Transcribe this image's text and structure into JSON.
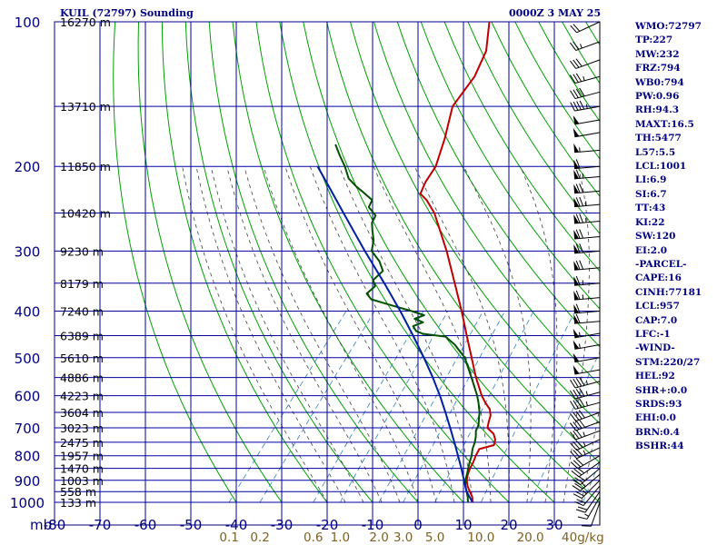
{
  "header": {
    "station": "KUIL (72797) Sounding",
    "datetime": "0000Z  3 MAY 25"
  },
  "indices": [
    "WMO:72797",
    "TP:227",
    "MW:232",
    "FRZ:794",
    "WB0:794",
    "PW:0.96",
    "RH:94.3",
    "MAXT:16.5",
    "TH:5477",
    "L57:5.5",
    "LCL:1001",
    "LI:6.9",
    "SI:6.7",
    "TT:43",
    "KI:22",
    "SW:120",
    "EI:2.0",
    "-PARCEL-",
    "CAPE:16",
    "CINH:77181",
    "LCL:957",
    "CAP:7.0",
    "LFC:-1",
    "-WIND-",
    "STM:220/27",
    "HEL:92",
    "SHR+:0.0",
    "SRDS:93",
    "EHI:0.0",
    "BRN:0.4",
    "BSHR:44"
  ],
  "colors": {
    "frame": "#000080",
    "isotherm_isobar": "#0000a0",
    "dry_adiabat": "#00a000",
    "moist_adiabat": "#404040",
    "mixing_ratio": "#3080c0",
    "temperature": "#c00000",
    "dewpoint": "#005000",
    "parcel": "#0020a0",
    "wind": "#000000"
  },
  "chart_data": {
    "type": "line",
    "title": "KUIL (72797) Sounding",
    "xlabel": "",
    "ylabel": "mb",
    "x_unit": "°C",
    "y_unit": "mb",
    "xlim": [
      -80,
      40
    ],
    "ylim": [
      1000,
      100
    ],
    "log_y": true,
    "skewed_temperature_axis": true,
    "grid": true,
    "pressure_ticks": [
      "100",
      "200",
      "300",
      "400",
      "500",
      "600",
      "700",
      "800",
      "900",
      "1000"
    ],
    "height_labels": [
      {
        "p": 100,
        "label": "16270 m"
      },
      {
        "p": 150,
        "label": "13710 m"
      },
      {
        "p": 200,
        "label": "11850 m"
      },
      {
        "p": 250,
        "label": "10420 m"
      },
      {
        "p": 300,
        "label": "9230 m"
      },
      {
        "p": 350,
        "label": "8179 m"
      },
      {
        "p": 400,
        "label": "7240 m"
      },
      {
        "p": 450,
        "label": "6389 m"
      },
      {
        "p": 500,
        "label": "5610 m"
      },
      {
        "p": 550,
        "label": "4886 m"
      },
      {
        "p": 600,
        "label": "4223 m"
      },
      {
        "p": 650,
        "label": "3604 m"
      },
      {
        "p": 700,
        "label": "3023 m"
      },
      {
        "p": 750,
        "label": "2475 m"
      },
      {
        "p": 800,
        "label": "1957 m"
      },
      {
        "p": 850,
        "label": "1470 m"
      },
      {
        "p": 900,
        "label": "1003 m"
      },
      {
        "p": 950,
        "label": "558 m"
      },
      {
        "p": 1000,
        "label": "133 m"
      }
    ],
    "temperature_ticks": [
      -80,
      -70,
      -60,
      -50,
      -40,
      -30,
      -20,
      -10,
      0,
      10,
      20,
      30
    ],
    "temperature_tick_labels": [
      "-80",
      "-70",
      "-60",
      "-50",
      "-40",
      "-30",
      "-20",
      "-10",
      "0",
      "10",
      "20",
      "30"
    ],
    "axis_unit_label": "mb",
    "mixing_ratio_labels": [
      "0.1",
      "0.2",
      "0.6",
      "1.0",
      "2.0",
      "3.0",
      "5.0",
      "10.0",
      "20.0",
      "40g/kg"
    ],
    "mixing_ratio_values": [
      0.1,
      0.2,
      0.6,
      1.0,
      2.0,
      3.0,
      5.0,
      10.0,
      20.0,
      40.0
    ],
    "series": [
      {
        "role": "temperature",
        "points": [
          {
            "p": 1000,
            "t": 12.0
          },
          {
            "p": 975,
            "t": 11.0
          },
          {
            "p": 950,
            "t": 9.5
          },
          {
            "p": 925,
            "t": 8.0
          },
          {
            "p": 900,
            "t": 6.8
          },
          {
            "p": 875,
            "t": 6.0
          },
          {
            "p": 850,
            "t": 5.4
          },
          {
            "p": 825,
            "t": 5.0
          },
          {
            "p": 800,
            "t": 4.4
          },
          {
            "p": 775,
            "t": 4.0
          },
          {
            "p": 760,
            "t": 6.5
          },
          {
            "p": 740,
            "t": 5.8
          },
          {
            "p": 720,
            "t": 4.4
          },
          {
            "p": 700,
            "t": 2.0
          },
          {
            "p": 680,
            "t": 1.2
          },
          {
            "p": 660,
            "t": 0.5
          },
          {
            "p": 640,
            "t": -0.8
          },
          {
            "p": 620,
            "t": -3.0
          },
          {
            "p": 600,
            "t": -5.0
          },
          {
            "p": 550,
            "t": -9.5
          },
          {
            "p": 500,
            "t": -14.0
          },
          {
            "p": 450,
            "t": -19.0
          },
          {
            "p": 400,
            "t": -24.5
          },
          {
            "p": 350,
            "t": -31.0
          },
          {
            "p": 300,
            "t": -38.5
          },
          {
            "p": 270,
            "t": -44.0
          },
          {
            "p": 250,
            "t": -48.0
          },
          {
            "p": 235,
            "t": -52.0
          },
          {
            "p": 228,
            "t": -54.5
          },
          {
            "p": 215,
            "t": -55.5
          },
          {
            "p": 200,
            "t": -56.0
          },
          {
            "p": 175,
            "t": -59.0
          },
          {
            "p": 150,
            "t": -63.0
          },
          {
            "p": 130,
            "t": -63.5
          },
          {
            "p": 115,
            "t": -65.5
          },
          {
            "p": 100,
            "t": -70.0
          }
        ]
      },
      {
        "role": "dewpoint",
        "points": [
          {
            "p": 1000,
            "t": 11.0
          },
          {
            "p": 975,
            "t": 10.0
          },
          {
            "p": 950,
            "t": 8.8
          },
          {
            "p": 925,
            "t": 7.5
          },
          {
            "p": 900,
            "t": 6.5
          },
          {
            "p": 875,
            "t": 5.8
          },
          {
            "p": 850,
            "t": 5.0
          },
          {
            "p": 825,
            "t": 4.2
          },
          {
            "p": 800,
            "t": 3.5
          },
          {
            "p": 775,
            "t": 2.5
          },
          {
            "p": 750,
            "t": 1.8
          },
          {
            "p": 730,
            "t": 1.0
          },
          {
            "p": 710,
            "t": 0.0
          },
          {
            "p": 690,
            "t": -0.5
          },
          {
            "p": 670,
            "t": -1.5
          },
          {
            "p": 650,
            "t": -2.5
          },
          {
            "p": 620,
            "t": -4.5
          },
          {
            "p": 600,
            "t": -6.0
          },
          {
            "p": 550,
            "t": -10.5
          },
          {
            "p": 500,
            "t": -15.5
          },
          {
            "p": 470,
            "t": -20.0
          },
          {
            "p": 452,
            "t": -23.5
          },
          {
            "p": 446,
            "t": -29.0
          },
          {
            "p": 440,
            "t": -31.0
          },
          {
            "p": 430,
            "t": -32.5
          },
          {
            "p": 422,
            "t": -31.0
          },
          {
            "p": 415,
            "t": -33.5
          },
          {
            "p": 408,
            "t": -32.0
          },
          {
            "p": 400,
            "t": -35.5
          },
          {
            "p": 390,
            "t": -40.5
          },
          {
            "p": 378,
            "t": -46.5
          },
          {
            "p": 368,
            "t": -48.5
          },
          {
            "p": 355,
            "t": -48.0
          },
          {
            "p": 345,
            "t": -49.5
          },
          {
            "p": 330,
            "t": -49.0
          },
          {
            "p": 315,
            "t": -51.5
          },
          {
            "p": 300,
            "t": -55.0
          },
          {
            "p": 285,
            "t": -56.5
          },
          {
            "p": 272,
            "t": -58.5
          },
          {
            "p": 262,
            "t": -60.0
          },
          {
            "p": 253,
            "t": -60.5
          },
          {
            "p": 243,
            "t": -63.5
          },
          {
            "p": 235,
            "t": -64.0
          },
          {
            "p": 226,
            "t": -67.5
          },
          {
            "p": 220,
            "t": -70.0
          },
          {
            "p": 212,
            "t": -73.0
          },
          {
            "p": 200,
            "t": -76.0
          },
          {
            "p": 190,
            "t": -79.0
          },
          {
            "p": 180,
            "t": -82.0
          }
        ]
      },
      {
        "role": "parcel",
        "points": [
          {
            "p": 1000,
            "t": 12.0
          },
          {
            "p": 950,
            "t": 8.8
          },
          {
            "p": 900,
            "t": 6.2
          },
          {
            "p": 850,
            "t": 3.5
          },
          {
            "p": 800,
            "t": 0.5
          },
          {
            "p": 750,
            "t": -2.7
          },
          {
            "p": 700,
            "t": -6.2
          },
          {
            "p": 650,
            "t": -10.0
          },
          {
            "p": 600,
            "t": -14.2
          },
          {
            "p": 550,
            "t": -19.0
          },
          {
            "p": 500,
            "t": -24.5
          },
          {
            "p": 450,
            "t": -30.8
          },
          {
            "p": 400,
            "t": -38.0
          },
          {
            "p": 350,
            "t": -46.5
          },
          {
            "p": 300,
            "t": -56.5
          },
          {
            "p": 250,
            "t": -68.0
          },
          {
            "p": 220,
            "t": -76.0
          },
          {
            "p": 200,
            "t": -82.0
          }
        ]
      }
    ],
    "wind_barbs": [
      {
        "p": 1000,
        "dir": 200,
        "spd": 10
      },
      {
        "p": 975,
        "dir": 210,
        "spd": 15
      },
      {
        "p": 950,
        "dir": 215,
        "spd": 20
      },
      {
        "p": 925,
        "dir": 220,
        "spd": 20
      },
      {
        "p": 900,
        "dir": 225,
        "spd": 25
      },
      {
        "p": 875,
        "dir": 230,
        "spd": 25
      },
      {
        "p": 850,
        "dir": 230,
        "spd": 30
      },
      {
        "p": 825,
        "dir": 235,
        "spd": 30
      },
      {
        "p": 800,
        "dir": 240,
        "spd": 30
      },
      {
        "p": 770,
        "dir": 245,
        "spd": 35
      },
      {
        "p": 740,
        "dir": 245,
        "spd": 35
      },
      {
        "p": 710,
        "dir": 250,
        "spd": 35
      },
      {
        "p": 680,
        "dir": 250,
        "spd": 40
      },
      {
        "p": 650,
        "dir": 250,
        "spd": 40
      },
      {
        "p": 620,
        "dir": 255,
        "spd": 45
      },
      {
        "p": 590,
        "dir": 255,
        "spd": 45
      },
      {
        "p": 560,
        "dir": 255,
        "spd": 45
      },
      {
        "p": 530,
        "dir": 260,
        "spd": 50
      },
      {
        "p": 500,
        "dir": 260,
        "spd": 50
      },
      {
        "p": 470,
        "dir": 260,
        "spd": 55
      },
      {
        "p": 445,
        "dir": 260,
        "spd": 55
      },
      {
        "p": 420,
        "dir": 265,
        "spd": 60
      },
      {
        "p": 400,
        "dir": 265,
        "spd": 60
      },
      {
        "p": 375,
        "dir": 265,
        "spd": 65
      },
      {
        "p": 350,
        "dir": 265,
        "spd": 65
      },
      {
        "p": 325,
        "dir": 265,
        "spd": 70
      },
      {
        "p": 300,
        "dir": 265,
        "spd": 70
      },
      {
        "p": 280,
        "dir": 265,
        "spd": 70
      },
      {
        "p": 260,
        "dir": 265,
        "spd": 75
      },
      {
        "p": 240,
        "dir": 265,
        "spd": 75
      },
      {
        "p": 225,
        "dir": 265,
        "spd": 70
      },
      {
        "p": 210,
        "dir": 265,
        "spd": 65
      },
      {
        "p": 200,
        "dir": 265,
        "spd": 60
      },
      {
        "p": 185,
        "dir": 265,
        "spd": 55
      },
      {
        "p": 170,
        "dir": 260,
        "spd": 50
      },
      {
        "p": 160,
        "dir": 260,
        "spd": 50
      },
      {
        "p": 150,
        "dir": 260,
        "spd": 45
      },
      {
        "p": 140,
        "dir": 255,
        "spd": 40
      },
      {
        "p": 130,
        "dir": 255,
        "spd": 35
      },
      {
        "p": 120,
        "dir": 250,
        "spd": 30
      },
      {
        "p": 110,
        "dir": 250,
        "spd": 25
      },
      {
        "p": 100,
        "dir": 245,
        "spd": 20
      }
    ]
  }
}
